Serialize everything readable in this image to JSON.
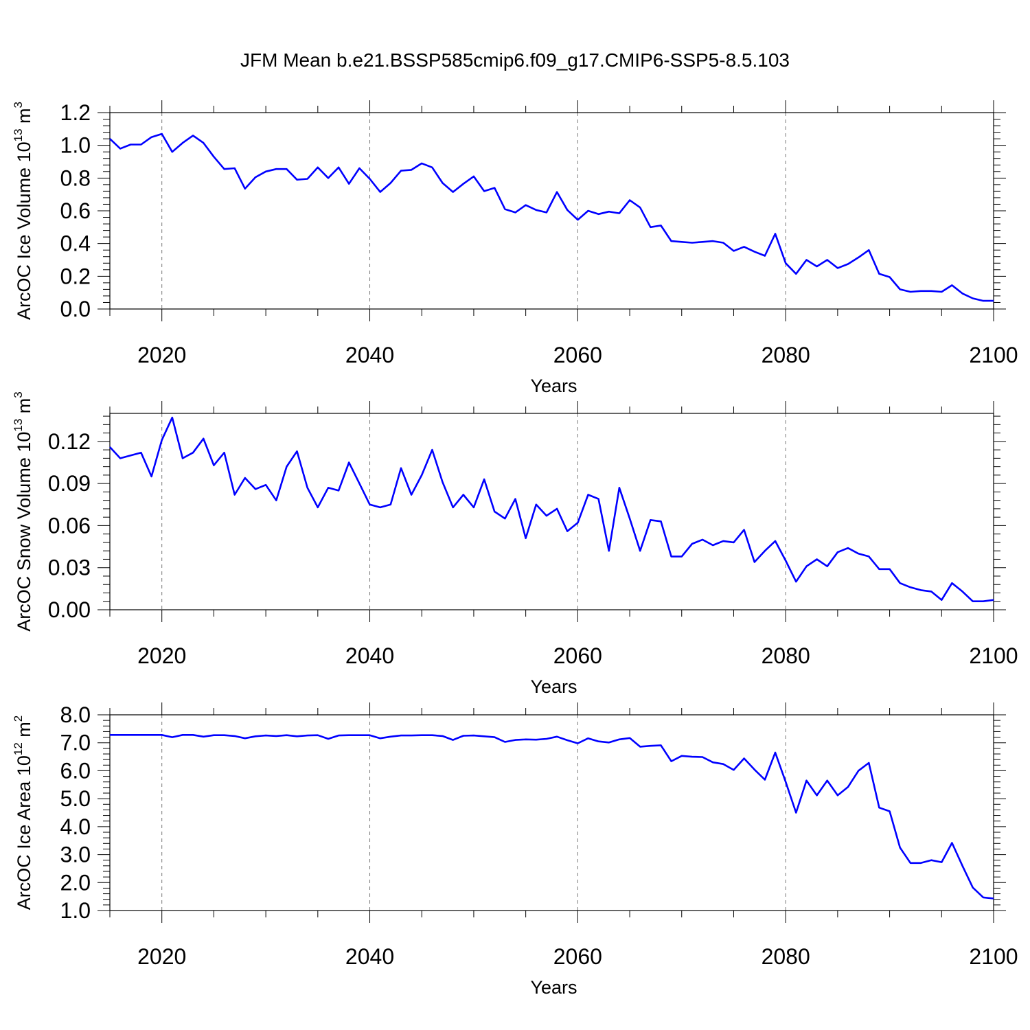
{
  "figure": {
    "title": "JFM Mean b.e21.BSSP585cmip6.f09_g17.CMIP6-SSP5-8.5.103",
    "line_color": "#0000ff"
  },
  "chart_data": [
    {
      "type": "line",
      "xlabel": "Years",
      "ylabel": "ArcOC Ice Volume 10",
      "ylabel_exponent": "13",
      "ylabel_unit": "m",
      "ylabel_unit_exponent": "3",
      "xlim": [
        2015,
        2100
      ],
      "ylim": [
        0.0,
        1.2
      ],
      "x_ticks": [
        2020,
        2040,
        2060,
        2080,
        2100
      ],
      "x_tick_labels": [
        "2020",
        "2040",
        "2060",
        "2080",
        "2100"
      ],
      "y_ticks": [
        0.0,
        0.2,
        0.4,
        0.6,
        0.8,
        1.0,
        1.2
      ],
      "y_tick_labels": [
        "0.0",
        "0.2",
        "0.4",
        "0.6",
        "0.8",
        "1.0",
        "1.2"
      ],
      "grid": "vertical dashed at major x ticks",
      "x": [
        2015,
        2016,
        2017,
        2018,
        2019,
        2020,
        2021,
        2022,
        2023,
        2024,
        2025,
        2026,
        2027,
        2028,
        2029,
        2030,
        2031,
        2032,
        2033,
        2034,
        2035,
        2036,
        2037,
        2038,
        2039,
        2040,
        2041,
        2042,
        2043,
        2044,
        2045,
        2046,
        2047,
        2048,
        2049,
        2050,
        2051,
        2052,
        2053,
        2054,
        2055,
        2056,
        2057,
        2058,
        2059,
        2060,
        2061,
        2062,
        2063,
        2064,
        2065,
        2066,
        2067,
        2068,
        2069,
        2070,
        2071,
        2072,
        2073,
        2074,
        2075,
        2076,
        2077,
        2078,
        2079,
        2080,
        2081,
        2082,
        2083,
        2084,
        2085,
        2086,
        2087,
        2088,
        2089,
        2090,
        2091,
        2092,
        2093,
        2094,
        2095,
        2096,
        2097,
        2098,
        2099,
        2100
      ],
      "values": [
        1.04,
        0.98,
        1.005,
        1.005,
        1.05,
        1.07,
        0.96,
        1.015,
        1.06,
        1.015,
        0.93,
        0.855,
        0.86,
        0.735,
        0.805,
        0.84,
        0.855,
        0.855,
        0.79,
        0.795,
        0.865,
        0.8,
        0.865,
        0.765,
        0.86,
        0.795,
        0.715,
        0.77,
        0.845,
        0.85,
        0.89,
        0.865,
        0.77,
        0.715,
        0.765,
        0.81,
        0.72,
        0.74,
        0.61,
        0.59,
        0.635,
        0.605,
        0.59,
        0.715,
        0.605,
        0.545,
        0.6,
        0.58,
        0.595,
        0.585,
        0.665,
        0.62,
        0.5,
        0.51,
        0.415,
        0.41,
        0.405,
        0.41,
        0.415,
        0.405,
        0.355,
        0.38,
        0.35,
        0.325,
        0.46,
        0.28,
        0.215,
        0.3,
        0.26,
        0.3,
        0.25,
        0.275,
        0.315,
        0.36,
        0.215,
        0.195,
        0.12,
        0.105,
        0.11,
        0.11,
        0.105,
        0.145,
        0.095,
        0.065,
        0.05,
        0.05
      ]
    },
    {
      "type": "line",
      "xlabel": "Years",
      "ylabel": "ArcOC Snow Volume 10",
      "ylabel_exponent": "13",
      "ylabel_unit": "m",
      "ylabel_unit_exponent": "3",
      "xlim": [
        2015,
        2100
      ],
      "ylim": [
        0.0,
        0.14
      ],
      "x_ticks": [
        2020,
        2040,
        2060,
        2080,
        2100
      ],
      "x_tick_labels": [
        "2020",
        "2040",
        "2060",
        "2080",
        "2100"
      ],
      "y_ticks": [
        0.0,
        0.03,
        0.06,
        0.09,
        0.12
      ],
      "y_tick_labels": [
        "0.00",
        "0.03",
        "0.06",
        "0.09",
        "0.12"
      ],
      "grid": "vertical dashed at major x ticks",
      "x": [
        2015,
        2016,
        2017,
        2018,
        2019,
        2020,
        2021,
        2022,
        2023,
        2024,
        2025,
        2026,
        2027,
        2028,
        2029,
        2030,
        2031,
        2032,
        2033,
        2034,
        2035,
        2036,
        2037,
        2038,
        2039,
        2040,
        2041,
        2042,
        2043,
        2044,
        2045,
        2046,
        2047,
        2048,
        2049,
        2050,
        2051,
        2052,
        2053,
        2054,
        2055,
        2056,
        2057,
        2058,
        2059,
        2060,
        2061,
        2062,
        2063,
        2064,
        2065,
        2066,
        2067,
        2068,
        2069,
        2070,
        2071,
        2072,
        2073,
        2074,
        2075,
        2076,
        2077,
        2078,
        2079,
        2080,
        2081,
        2082,
        2083,
        2084,
        2085,
        2086,
        2087,
        2088,
        2089,
        2090,
        2091,
        2092,
        2093,
        2094,
        2095,
        2096,
        2097,
        2098,
        2099,
        2100
      ],
      "values": [
        0.116,
        0.108,
        0.11,
        0.112,
        0.095,
        0.121,
        0.137,
        0.108,
        0.112,
        0.122,
        0.103,
        0.112,
        0.082,
        0.094,
        0.086,
        0.089,
        0.078,
        0.102,
        0.113,
        0.087,
        0.073,
        0.087,
        0.085,
        0.105,
        0.09,
        0.075,
        0.073,
        0.075,
        0.101,
        0.082,
        0.096,
        0.114,
        0.091,
        0.073,
        0.082,
        0.073,
        0.093,
        0.07,
        0.065,
        0.079,
        0.051,
        0.075,
        0.067,
        0.072,
        0.056,
        0.062,
        0.082,
        0.079,
        0.042,
        0.087,
        0.065,
        0.042,
        0.064,
        0.063,
        0.038,
        0.038,
        0.047,
        0.05,
        0.046,
        0.049,
        0.048,
        0.057,
        0.034,
        0.042,
        0.049,
        0.035,
        0.02,
        0.031,
        0.036,
        0.031,
        0.041,
        0.044,
        0.04,
        0.038,
        0.029,
        0.029,
        0.019,
        0.016,
        0.014,
        0.013,
        0.007,
        0.019,
        0.013,
        0.006,
        0.006,
        0.007
      ]
    },
    {
      "type": "line",
      "xlabel": "Years",
      "ylabel": "ArcOC Ice Area 10",
      "ylabel_exponent": "12",
      "ylabel_unit": "m",
      "ylabel_unit_exponent": "2",
      "xlim": [
        2015,
        2100
      ],
      "ylim": [
        1.0,
        8.0
      ],
      "x_ticks": [
        2020,
        2040,
        2060,
        2080,
        2100
      ],
      "x_tick_labels": [
        "2020",
        "2040",
        "2060",
        "2080",
        "2100"
      ],
      "y_ticks": [
        1.0,
        2.0,
        3.0,
        4.0,
        5.0,
        6.0,
        7.0,
        8.0
      ],
      "y_tick_labels": [
        "1.0",
        "2.0",
        "3.0",
        "4.0",
        "5.0",
        "6.0",
        "7.0",
        "8.0"
      ],
      "grid": "vertical dashed at major x ticks",
      "x": [
        2015,
        2016,
        2017,
        2018,
        2019,
        2020,
        2021,
        2022,
        2023,
        2024,
        2025,
        2026,
        2027,
        2028,
        2029,
        2030,
        2031,
        2032,
        2033,
        2034,
        2035,
        2036,
        2037,
        2038,
        2039,
        2040,
        2041,
        2042,
        2043,
        2044,
        2045,
        2046,
        2047,
        2048,
        2049,
        2050,
        2051,
        2052,
        2053,
        2054,
        2055,
        2056,
        2057,
        2058,
        2059,
        2060,
        2061,
        2062,
        2063,
        2064,
        2065,
        2066,
        2067,
        2068,
        2069,
        2070,
        2071,
        2072,
        2073,
        2074,
        2075,
        2076,
        2077,
        2078,
        2079,
        2080,
        2081,
        2082,
        2083,
        2084,
        2085,
        2086,
        2087,
        2088,
        2089,
        2090,
        2091,
        2092,
        2093,
        2094,
        2095,
        2096,
        2097,
        2098,
        2099,
        2100
      ],
      "values": [
        7.28,
        7.28,
        7.28,
        7.28,
        7.28,
        7.28,
        7.2,
        7.28,
        7.28,
        7.22,
        7.27,
        7.27,
        7.24,
        7.16,
        7.23,
        7.26,
        7.24,
        7.27,
        7.23,
        7.26,
        7.27,
        7.14,
        7.26,
        7.27,
        7.27,
        7.27,
        7.16,
        7.22,
        7.26,
        7.26,
        7.27,
        7.27,
        7.24,
        7.1,
        7.25,
        7.26,
        7.23,
        7.2,
        7.03,
        7.1,
        7.12,
        7.11,
        7.14,
        7.22,
        7.09,
        6.98,
        7.16,
        7.05,
        7.01,
        7.12,
        7.17,
        6.86,
        6.89,
        6.91,
        6.34,
        6.53,
        6.5,
        6.49,
        6.3,
        6.24,
        6.03,
        6.44,
        6.04,
        5.68,
        6.65,
        5.6,
        4.5,
        5.65,
        5.12,
        5.65,
        5.12,
        5.42,
        6.0,
        6.28,
        4.68,
        4.55,
        3.25,
        2.7,
        2.7,
        2.8,
        2.73,
        3.42,
        2.6,
        1.82,
        1.47,
        1.43
      ]
    }
  ]
}
